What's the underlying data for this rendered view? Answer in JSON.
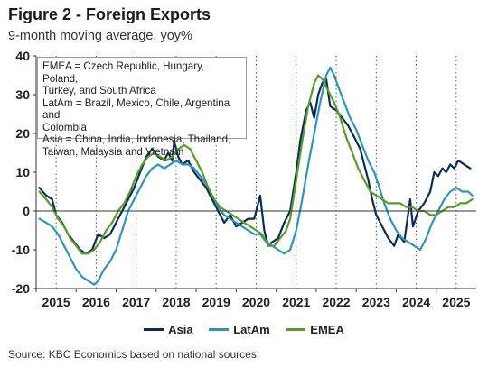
{
  "header": {
    "title": "Figure 2 - Foreign Exports",
    "subtitle": "9-month moving average, yoy%"
  },
  "note": {
    "lines": [
      "EMEA = Czech Republic, Hungary, Poland,",
      "Turkey, and South Africa",
      "LatAm = Brazil, Mexico, Chile, Argentina and",
      "Colombia",
      "Asia = China, India, Indonesia, Thailand,",
      "Taiwan, Malaysia and Vietnam"
    ]
  },
  "source": "Source: KBC Economics based on national sources",
  "chart_data": {
    "type": "line",
    "title": "Figure 2 - Foreign Exports",
    "subtitle": "9-month moving average, yoy%",
    "ylim": [
      -20,
      40
    ],
    "yticks": [
      -20,
      -10,
      0,
      10,
      20,
      30,
      40
    ],
    "xlim": [
      2014.5,
      2025.5
    ],
    "xtick_labels": [
      "2015",
      "2016",
      "2017",
      "2018",
      "2019",
      "2020",
      "2021",
      "2022",
      "2023",
      "2024",
      "2025"
    ],
    "grid": "dotted vertical at year boundaries",
    "legend_position": "bottom",
    "series": [
      {
        "name": "Asia",
        "color": "#0b2b5c",
        "points": [
          [
            2014.58,
            6
          ],
          [
            2014.75,
            4
          ],
          [
            2014.9,
            3
          ],
          [
            2015.0,
            -1
          ],
          [
            2015.15,
            -3
          ],
          [
            2015.3,
            -6
          ],
          [
            2015.45,
            -8
          ],
          [
            2015.6,
            -10
          ],
          [
            2015.75,
            -11
          ],
          [
            2015.9,
            -10
          ],
          [
            2016.05,
            -6
          ],
          [
            2016.2,
            -7
          ],
          [
            2016.35,
            -6
          ],
          [
            2016.5,
            -3
          ],
          [
            2016.65,
            0
          ],
          [
            2016.8,
            3
          ],
          [
            2016.95,
            6
          ],
          [
            2017.1,
            10
          ],
          [
            2017.25,
            14
          ],
          [
            2017.4,
            16
          ],
          [
            2017.55,
            14
          ],
          [
            2017.7,
            13
          ],
          [
            2017.8,
            15
          ],
          [
            2017.9,
            13
          ],
          [
            2017.95,
            18
          ],
          [
            2018.05,
            14
          ],
          [
            2018.15,
            12
          ],
          [
            2018.3,
            13
          ],
          [
            2018.45,
            10
          ],
          [
            2018.6,
            8
          ],
          [
            2018.75,
            6
          ],
          [
            2018.9,
            3
          ],
          [
            2019.05,
            0
          ],
          [
            2019.2,
            -3
          ],
          [
            2019.35,
            -1
          ],
          [
            2019.5,
            -4
          ],
          [
            2019.65,
            -3
          ],
          [
            2019.8,
            -2
          ],
          [
            2019.95,
            -2
          ],
          [
            2020.1,
            4
          ],
          [
            2020.2,
            -5
          ],
          [
            2020.3,
            -9
          ],
          [
            2020.4,
            -8
          ],
          [
            2020.55,
            -7
          ],
          [
            2020.7,
            -3
          ],
          [
            2020.85,
            0
          ],
          [
            2021.0,
            10
          ],
          [
            2021.1,
            18
          ],
          [
            2021.25,
            26
          ],
          [
            2021.35,
            28
          ],
          [
            2021.45,
            24
          ],
          [
            2021.55,
            30
          ],
          [
            2021.65,
            33
          ],
          [
            2021.75,
            34
          ],
          [
            2021.85,
            27
          ],
          [
            2022.0,
            26
          ],
          [
            2022.15,
            24
          ],
          [
            2022.3,
            22
          ],
          [
            2022.45,
            19
          ],
          [
            2022.6,
            16
          ],
          [
            2022.7,
            12
          ],
          [
            2022.8,
            8
          ],
          [
            2022.9,
            3
          ],
          [
            2023.0,
            -1
          ],
          [
            2023.15,
            -4
          ],
          [
            2023.3,
            -7
          ],
          [
            2023.45,
            -9
          ],
          [
            2023.55,
            -6
          ],
          [
            2023.7,
            -8
          ],
          [
            2023.85,
            3
          ],
          [
            2023.92,
            -4
          ],
          [
            2024.05,
            0
          ],
          [
            2024.2,
            2
          ],
          [
            2024.35,
            5
          ],
          [
            2024.45,
            10
          ],
          [
            2024.55,
            9
          ],
          [
            2024.65,
            11
          ],
          [
            2024.75,
            10
          ],
          [
            2024.85,
            12
          ],
          [
            2024.95,
            11
          ],
          [
            2025.05,
            13
          ],
          [
            2025.2,
            12
          ],
          [
            2025.35,
            11
          ]
        ]
      },
      {
        "name": "LatAm",
        "color": "#2b95bf",
        "points": [
          [
            2014.58,
            -2
          ],
          [
            2014.75,
            -3
          ],
          [
            2014.9,
            -4
          ],
          [
            2015.05,
            -6
          ],
          [
            2015.2,
            -9
          ],
          [
            2015.35,
            -12
          ],
          [
            2015.5,
            -15
          ],
          [
            2015.65,
            -17
          ],
          [
            2015.8,
            -18
          ],
          [
            2015.95,
            -19
          ],
          [
            2016.05,
            -18
          ],
          [
            2016.2,
            -15
          ],
          [
            2016.35,
            -13
          ],
          [
            2016.5,
            -10
          ],
          [
            2016.65,
            -5
          ],
          [
            2016.8,
            0
          ],
          [
            2016.95,
            3
          ],
          [
            2017.1,
            6
          ],
          [
            2017.25,
            9
          ],
          [
            2017.4,
            11
          ],
          [
            2017.55,
            12
          ],
          [
            2017.7,
            11
          ],
          [
            2017.85,
            12
          ],
          [
            2018.0,
            13
          ],
          [
            2018.15,
            12
          ],
          [
            2018.3,
            12
          ],
          [
            2018.45,
            11
          ],
          [
            2018.6,
            9
          ],
          [
            2018.75,
            7
          ],
          [
            2018.9,
            4
          ],
          [
            2019.05,
            1
          ],
          [
            2019.2,
            -1
          ],
          [
            2019.35,
            -2
          ],
          [
            2019.5,
            -3
          ],
          [
            2019.65,
            -4
          ],
          [
            2019.8,
            -5
          ],
          [
            2019.95,
            -6
          ],
          [
            2020.1,
            -6
          ],
          [
            2020.25,
            -8
          ],
          [
            2020.4,
            -9
          ],
          [
            2020.55,
            -10
          ],
          [
            2020.7,
            -11
          ],
          [
            2020.85,
            -10
          ],
          [
            2021.0,
            -5
          ],
          [
            2021.15,
            3
          ],
          [
            2021.3,
            12
          ],
          [
            2021.45,
            20
          ],
          [
            2021.6,
            28
          ],
          [
            2021.75,
            35
          ],
          [
            2021.85,
            37
          ],
          [
            2021.95,
            35
          ],
          [
            2022.05,
            32
          ],
          [
            2022.2,
            28
          ],
          [
            2022.35,
            24
          ],
          [
            2022.5,
            21
          ],
          [
            2022.65,
            17
          ],
          [
            2022.8,
            13
          ],
          [
            2022.95,
            10
          ],
          [
            2023.05,
            7
          ],
          [
            2023.2,
            2
          ],
          [
            2023.35,
            -2
          ],
          [
            2023.5,
            -5
          ],
          [
            2023.65,
            -7
          ],
          [
            2023.8,
            -8
          ],
          [
            2023.95,
            -9
          ],
          [
            2024.1,
            -10
          ],
          [
            2024.25,
            -7
          ],
          [
            2024.4,
            -3
          ],
          [
            2024.55,
            0
          ],
          [
            2024.7,
            3
          ],
          [
            2024.85,
            5
          ],
          [
            2025.0,
            6
          ],
          [
            2025.15,
            5
          ],
          [
            2025.3,
            5
          ],
          [
            2025.4,
            4
          ]
        ]
      },
      {
        "name": "EMEA",
        "color": "#5b9b28",
        "points": [
          [
            2014.58,
            5
          ],
          [
            2014.75,
            3
          ],
          [
            2014.9,
            1
          ],
          [
            2015.05,
            -2
          ],
          [
            2015.2,
            -4
          ],
          [
            2015.35,
            -7
          ],
          [
            2015.5,
            -9
          ],
          [
            2015.65,
            -11
          ],
          [
            2015.8,
            -11
          ],
          [
            2015.95,
            -10
          ],
          [
            2016.1,
            -8
          ],
          [
            2016.25,
            -5
          ],
          [
            2016.4,
            -3
          ],
          [
            2016.55,
            0
          ],
          [
            2016.7,
            2
          ],
          [
            2016.85,
            5
          ],
          [
            2017.0,
            9
          ],
          [
            2017.15,
            12
          ],
          [
            2017.3,
            14
          ],
          [
            2017.45,
            15
          ],
          [
            2017.6,
            14
          ],
          [
            2017.75,
            13
          ],
          [
            2017.9,
            14
          ],
          [
            2018.05,
            16
          ],
          [
            2018.2,
            17
          ],
          [
            2018.35,
            16
          ],
          [
            2018.5,
            13
          ],
          [
            2018.65,
            10
          ],
          [
            2018.8,
            6
          ],
          [
            2018.95,
            3
          ],
          [
            2019.1,
            1
          ],
          [
            2019.25,
            0
          ],
          [
            2019.4,
            -1
          ],
          [
            2019.55,
            -2
          ],
          [
            2019.7,
            -3
          ],
          [
            2019.85,
            -4
          ],
          [
            2020.0,
            -5
          ],
          [
            2020.15,
            -6
          ],
          [
            2020.3,
            -9
          ],
          [
            2020.45,
            -9
          ],
          [
            2020.6,
            -7
          ],
          [
            2020.75,
            -5
          ],
          [
            2020.85,
            -2
          ],
          [
            2021.0,
            8
          ],
          [
            2021.15,
            18
          ],
          [
            2021.3,
            27
          ],
          [
            2021.45,
            33
          ],
          [
            2021.55,
            35
          ],
          [
            2021.65,
            34
          ],
          [
            2021.8,
            31
          ],
          [
            2021.95,
            28
          ],
          [
            2022.1,
            24
          ],
          [
            2022.25,
            19
          ],
          [
            2022.4,
            15
          ],
          [
            2022.55,
            11
          ],
          [
            2022.7,
            8
          ],
          [
            2022.85,
            5
          ],
          [
            2023.0,
            4
          ],
          [
            2023.15,
            3
          ],
          [
            2023.3,
            2
          ],
          [
            2023.45,
            2
          ],
          [
            2023.6,
            2
          ],
          [
            2023.75,
            1
          ],
          [
            2023.9,
            1
          ],
          [
            2024.05,
            0
          ],
          [
            2024.2,
            0
          ],
          [
            2024.35,
            -1
          ],
          [
            2024.5,
            -1
          ],
          [
            2024.65,
            0
          ],
          [
            2024.8,
            1
          ],
          [
            2024.95,
            1
          ],
          [
            2025.1,
            2
          ],
          [
            2025.25,
            2
          ],
          [
            2025.4,
            3
          ]
        ]
      }
    ]
  }
}
